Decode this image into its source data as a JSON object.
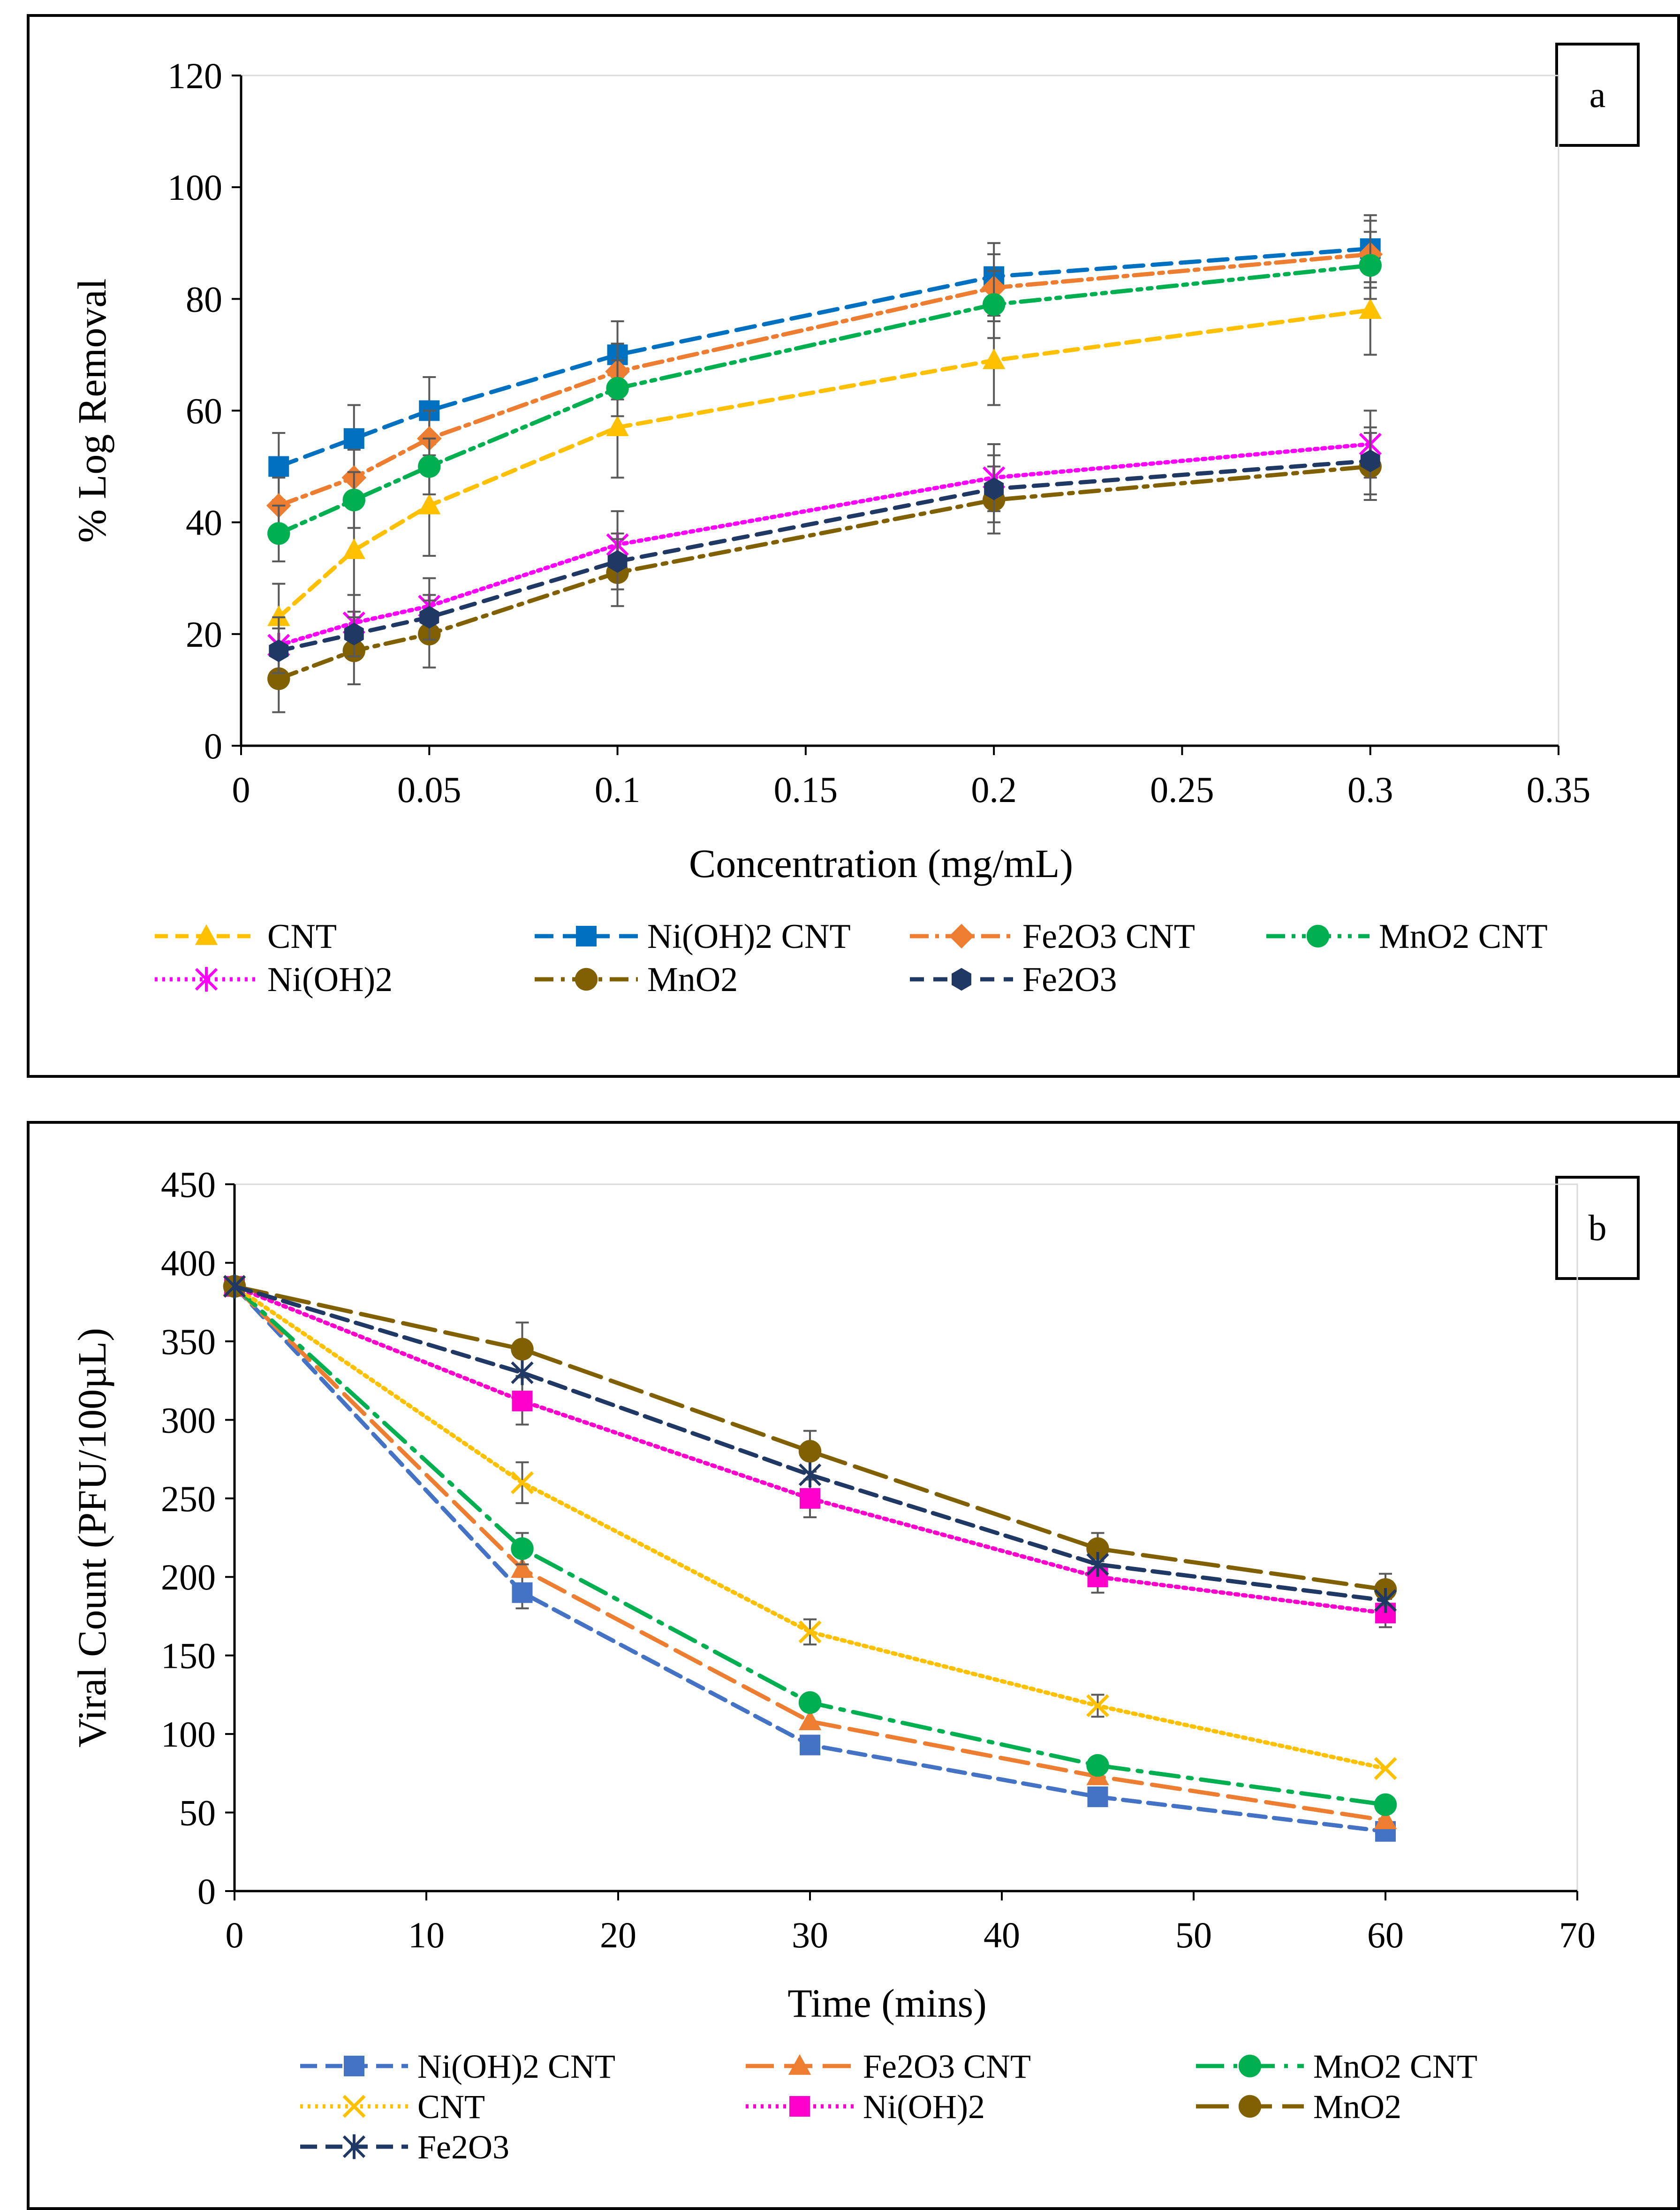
{
  "chart_data": [
    {
      "panel_label": "a",
      "type": "line",
      "xlabel": "Concentration (mg/mL)",
      "ylabel": "% Log Removal",
      "xlim": [
        0,
        0.35
      ],
      "ylim": [
        0,
        120
      ],
      "xticks": [
        "0",
        "0.05",
        "0.1",
        "0.15",
        "0.2",
        "0.25",
        "0.3",
        "0.35"
      ],
      "yticks": [
        "0",
        "20",
        "40",
        "60",
        "80",
        "100",
        "120"
      ],
      "x": [
        0.01,
        0.03,
        0.05,
        0.1,
        0.2,
        0.3
      ],
      "grid": false,
      "legend_position": "bottom",
      "series": [
        {
          "name": "CNT",
          "values": [
            23,
            35,
            43,
            57,
            69,
            78
          ],
          "errors": [
            6,
            8,
            9,
            9,
            8,
            8
          ],
          "color": "#FFC000",
          "marker": "triangle",
          "dash": "28 16"
        },
        {
          "name": "Ni(OH)2 CNT",
          "values": [
            50,
            55,
            60,
            70,
            84,
            89
          ],
          "errors": [
            6,
            6,
            6,
            6,
            6,
            6
          ],
          "color": "#0070C0",
          "marker": "square",
          "dash": "40 20"
        },
        {
          "name": "Fe2O3 CNT",
          "values": [
            43,
            48,
            55,
            67,
            82,
            88
          ],
          "errors": [
            5,
            5,
            5,
            5,
            6,
            6
          ],
          "color": "#ED7D31",
          "marker": "diamond",
          "dash": "40 14 8 14"
        },
        {
          "name": "MnO2 CNT",
          "values": [
            38,
            44,
            50,
            64,
            79,
            86
          ],
          "errors": [
            5,
            5,
            5,
            5,
            6,
            6
          ],
          "color": "#00B050",
          "marker": "circle",
          "dash": "40 14 8 14 8 14"
        },
        {
          "name": "Ni(OH)2",
          "values": [
            18,
            22,
            25,
            36,
            48,
            54
          ],
          "errors": [
            5,
            5,
            5,
            6,
            6,
            6
          ],
          "color": "#FF00FF",
          "marker": "asterisk",
          "dash": "6 10"
        },
        {
          "name": "MnO2",
          "values": [
            12,
            17,
            20,
            31,
            44,
            50
          ],
          "errors": [
            6,
            6,
            6,
            6,
            6,
            6
          ],
          "color": "#806000",
          "marker": "circle",
          "dash": "40 16 8 16"
        },
        {
          "name": "Fe2O3",
          "values": [
            17,
            20,
            23,
            33,
            46,
            51
          ],
          "errors": [
            4,
            4,
            4,
            5,
            6,
            6
          ],
          "color": "#203864",
          "marker": "hexagon",
          "dash": "30 20"
        }
      ]
    },
    {
      "panel_label": "b",
      "type": "line",
      "xlabel": "Time (mins)",
      "ylabel": "Viral Count (PFU/100µL)",
      "xlim": [
        0,
        70
      ],
      "ylim": [
        0,
        450
      ],
      "xticks": [
        "0",
        "10",
        "20",
        "30",
        "40",
        "50",
        "60",
        "70"
      ],
      "yticks": [
        "0",
        "50",
        "100",
        "150",
        "200",
        "250",
        "300",
        "350",
        "400",
        "450"
      ],
      "x": [
        0,
        15,
        30,
        45,
        60
      ],
      "grid": false,
      "legend_position": "bottom",
      "series": [
        {
          "name": "Ni(OH)2 CNT",
          "values": [
            385,
            190,
            93,
            60,
            38
          ],
          "errors": [
            0,
            10,
            0,
            0,
            0
          ],
          "color": "#4472C4",
          "marker": "square",
          "dash": "36 18"
        },
        {
          "name": "Fe2O3 CNT",
          "values": [
            385,
            205,
            108,
            73,
            45
          ],
          "errors": [
            0,
            0,
            0,
            0,
            0
          ],
          "color": "#ED7D31",
          "marker": "triangle",
          "dash": "60 22"
        },
        {
          "name": "MnO2 CNT",
          "values": [
            385,
            218,
            120,
            80,
            55
          ],
          "errors": [
            0,
            10,
            0,
            0,
            0
          ],
          "color": "#00B050",
          "marker": "circle",
          "dash": "60 20 8 20"
        },
        {
          "name": "CNT",
          "values": [
            385,
            260,
            165,
            118,
            78
          ],
          "errors": [
            0,
            13,
            8,
            7,
            0
          ],
          "color": "#FFC000",
          "marker": "cross",
          "dash": "6 10"
        },
        {
          "name": "Ni(OH)2",
          "values": [
            385,
            312,
            250,
            200,
            177
          ],
          "errors": [
            0,
            15,
            12,
            10,
            9
          ],
          "color": "#FF00CC",
          "marker": "square",
          "dash": "6 10"
        },
        {
          "name": "MnO2",
          "values": [
            385,
            345,
            280,
            218,
            192
          ],
          "errors": [
            0,
            17,
            13,
            10,
            10
          ],
          "color": "#806000",
          "marker": "circle",
          "dash": "70 22"
        },
        {
          "name": "Fe2O3",
          "values": [
            385,
            330,
            265,
            208,
            185
          ],
          "errors": [
            0,
            0,
            0,
            0,
            0
          ],
          "color": "#203864",
          "marker": "asterisk",
          "dash": "36 18"
        }
      ]
    }
  ]
}
